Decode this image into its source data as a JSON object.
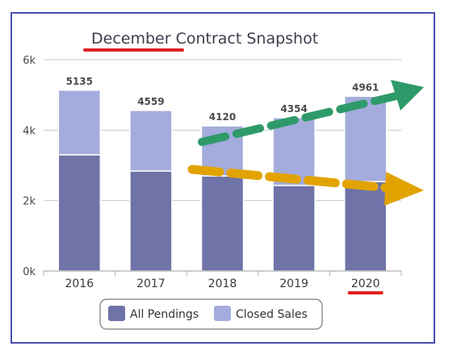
{
  "chart_data": {
    "type": "bar",
    "stacked": true,
    "title": "December Contract Snapshot",
    "xlabel": "",
    "ylabel": "",
    "categories": [
      "2016",
      "2017",
      "2018",
      "2019",
      "2020"
    ],
    "ylim": [
      0,
      6000
    ],
    "yticks": [
      0,
      2000,
      4000,
      6000
    ],
    "ytick_labels": [
      "0k",
      "2k",
      "4k",
      "6k"
    ],
    "grid": true,
    "legend_position": "bottom-center",
    "series": [
      {
        "name": "All Pendings",
        "values": [
          3300,
          2840,
          2700,
          2430,
          2540
        ],
        "color": "#6f73a8"
      },
      {
        "name": "Closed Sales",
        "values": [
          1835,
          1719,
          1420,
          1924,
          2421
        ],
        "color": "#a3acdc"
      }
    ],
    "totals": [
      5135,
      4559,
      4120,
      4354,
      4961
    ],
    "annotations": {
      "trend_arrow_colors": [
        "#2e9a6a",
        "#e2a300"
      ],
      "underline_color": "#e02020"
    }
  }
}
